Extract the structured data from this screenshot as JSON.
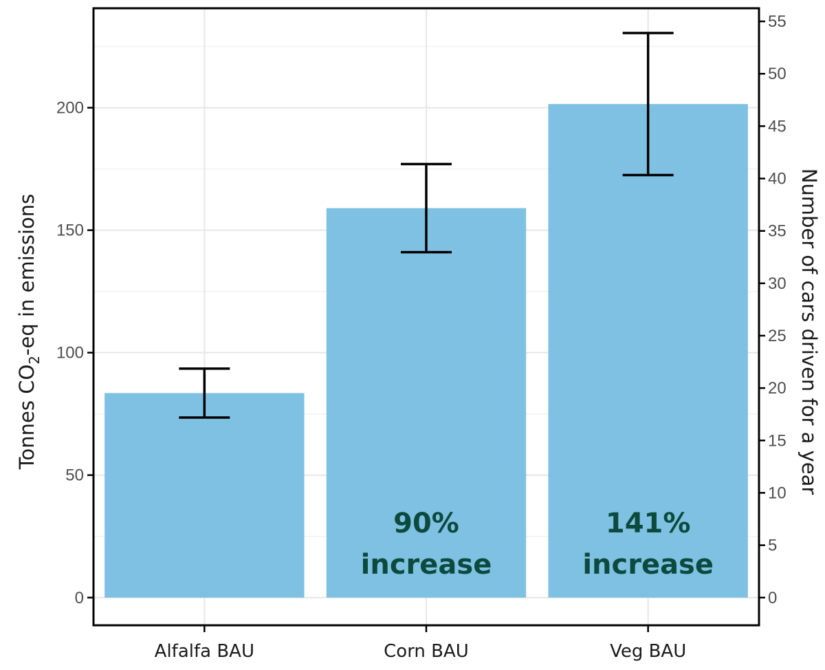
{
  "chart_data": {
    "type": "bar",
    "categories": [
      "Alfalfa BAU",
      "Corn BAU",
      "Veg BAU"
    ],
    "values": [
      83.5,
      159,
      201.5
    ],
    "error_bars": [
      {
        "low": 73.5,
        "high": 93.5
      },
      {
        "low": 141,
        "high": 177
      },
      {
        "low": 172.5,
        "high": 230.5
      }
    ],
    "ylabel_left_prefix": "Tonnes CO",
    "ylabel_left_subscript": "2",
    "ylabel_left_suffix": "-eq in emissions",
    "ylabel_right": "Number of cars driven for a year",
    "y_left_ticks": [
      0,
      50,
      100,
      150,
      200
    ],
    "y_left_range": [
      -11.3,
      240.6
    ],
    "y_right_ticks": [
      0,
      5,
      10,
      15,
      20,
      25,
      30,
      35,
      40,
      45,
      50,
      55
    ],
    "y_right_per_left_unit": 0.2338,
    "annotations": [
      {
        "category": "Corn BAU",
        "lines": [
          "90%",
          "increase"
        ]
      },
      {
        "category": "Veg BAU",
        "lines": [
          "141%",
          "increase"
        ]
      }
    ],
    "bar_color": "#7fc1e3",
    "grid": true,
    "legend": "none"
  }
}
